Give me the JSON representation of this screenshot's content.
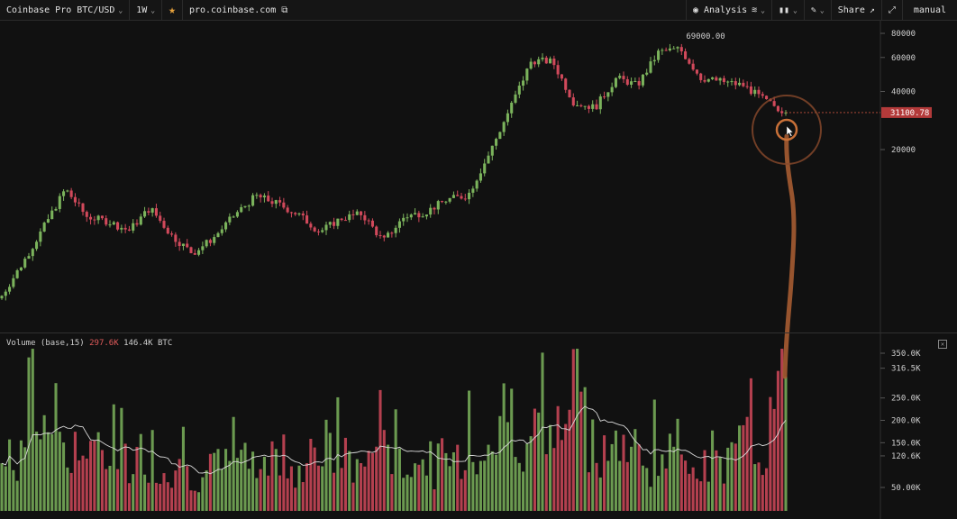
{
  "toolbar": {
    "pair": "Coinbase Pro BTC/USD",
    "interval": "1W",
    "url": "pro.coinbase.com",
    "analysis": "Analysis",
    "share": "Share",
    "mode": "manual"
  },
  "price_pane": {
    "peak_label": "69000.00",
    "current_price": "31100.78",
    "axis_ticks": [
      {
        "label": "80000",
        "value": 80000
      },
      {
        "label": "60000",
        "value": 60000
      },
      {
        "label": "40000",
        "value": 40000
      },
      {
        "label": "20000",
        "value": 20000
      }
    ]
  },
  "volume_pane": {
    "title": "Volume (base,15)",
    "value1": "297.6K",
    "value2": "146.4K BTC",
    "axis_ticks": [
      {
        "label": "350.0K",
        "value": 350
      },
      {
        "label": "316.5K",
        "value": 316.5
      },
      {
        "label": "250.0K",
        "value": 250
      },
      {
        "label": "200.0K",
        "value": 200
      },
      {
        "label": "150.0K",
        "value": 150
      },
      {
        "label": "120.6K",
        "value": 120.6
      },
      {
        "label": "50.00K",
        "value": 50
      }
    ]
  },
  "colors": {
    "up": "#7bb35c",
    "down": "#d1495b",
    "annotation": "#b3643a",
    "background": "#111111"
  },
  "chart_data": {
    "type": "candlestick",
    "scale": "log",
    "ylim": [
      3000,
      90000
    ],
    "close_anchors": [
      3500,
      5200,
      8000,
      12500,
      9000,
      8500,
      7600,
      10000,
      7200,
      5800,
      7000,
      9200,
      11500,
      10500,
      9200,
      7500,
      8800,
      9300,
      6700,
      9000,
      9500,
      11000,
      11600,
      19000,
      33000,
      58000,
      57000,
      35000,
      33000,
      47000,
      43000,
      64000,
      66500,
      47000,
      45000,
      43000,
      36000,
      31100
    ],
    "volume_anchors": [
      95,
      130,
      220,
      160,
      120,
      110,
      100,
      130,
      90,
      80,
      85,
      95,
      110,
      120,
      100,
      140,
      110,
      95,
      190,
      110,
      95,
      110,
      120,
      140,
      220,
      170,
      150,
      230,
      160,
      140,
      120,
      110,
      130,
      120,
      110,
      130,
      140,
      297.6
    ]
  }
}
